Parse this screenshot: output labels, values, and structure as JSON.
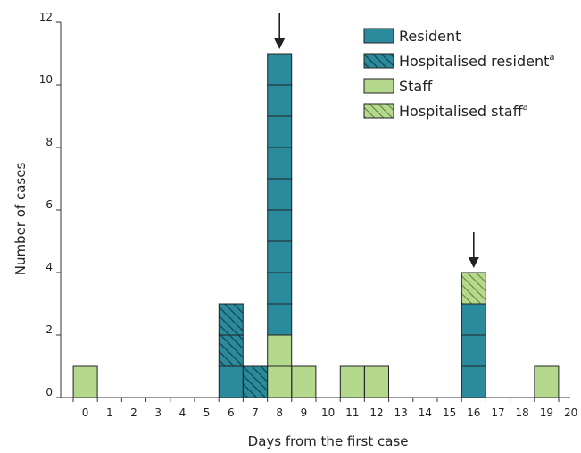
{
  "chart_data": {
    "type": "bar",
    "stacked": true,
    "title": "",
    "xlabel": "Days from the first case",
    "ylabel": "Number of cases",
    "ylim": [
      0,
      12
    ],
    "y_ticks": [
      "0",
      "2",
      "4",
      "6",
      "8",
      "10",
      "12"
    ],
    "categories": [
      "0",
      "1",
      "2",
      "3",
      "4",
      "5",
      "6",
      "7",
      "8",
      "9",
      "10",
      "11",
      "12",
      "13",
      "14",
      "15",
      "16",
      "17",
      "18",
      "19",
      "20"
    ],
    "series": [
      {
        "name": "Staff",
        "color": "#b5d98c",
        "pattern": "solid",
        "values": [
          1,
          0,
          0,
          0,
          0,
          0,
          0,
          0,
          2,
          1,
          0,
          1,
          1,
          0,
          0,
          0,
          0,
          0,
          0,
          1,
          0
        ]
      },
      {
        "name": "Hospitalised staff",
        "color": "#b5d98c",
        "pattern": "hatch",
        "values": [
          0,
          0,
          0,
          0,
          0,
          0,
          0,
          0,
          0,
          0,
          0,
          0,
          0,
          0,
          0,
          0,
          1,
          0,
          0,
          0,
          0
        ]
      },
      {
        "name": "Resident",
        "color": "#2b8a9b",
        "pattern": "solid",
        "values": [
          0,
          0,
          0,
          0,
          0,
          0,
          1,
          0,
          9,
          0,
          0,
          0,
          0,
          0,
          0,
          0,
          3,
          0,
          0,
          0,
          0
        ]
      },
      {
        "name": "Hospitalised resident",
        "color": "#2b8a9b",
        "pattern": "hatch",
        "values": [
          0,
          0,
          0,
          0,
          0,
          0,
          2,
          1,
          0,
          0,
          0,
          0,
          0,
          0,
          0,
          0,
          0,
          0,
          0,
          0,
          0
        ]
      }
    ],
    "stack_order_bottom_to_top": {
      "6": [
        "Resident",
        "Hospitalised resident"
      ],
      "7": [
        "Hospitalised resident"
      ],
      "8": [
        "Staff",
        "Resident"
      ],
      "16": [
        "Resident",
        "Hospitalised staff"
      ]
    },
    "legend": {
      "placement": "top-right",
      "items": [
        {
          "label": "Resident",
          "superscript": "",
          "series": "Resident"
        },
        {
          "label": "Hospitalised resident",
          "superscript": "a",
          "series": "Hospitalised resident"
        },
        {
          "label": "Staff",
          "superscript": "",
          "series": "Staff"
        },
        {
          "label": "Hospitalised staff",
          "superscript": "a",
          "series": "Hospitalised staff"
        }
      ]
    },
    "annotations": [
      {
        "type": "arrow",
        "category": "8"
      },
      {
        "type": "arrow",
        "category": "16"
      }
    ],
    "grid": false
  }
}
